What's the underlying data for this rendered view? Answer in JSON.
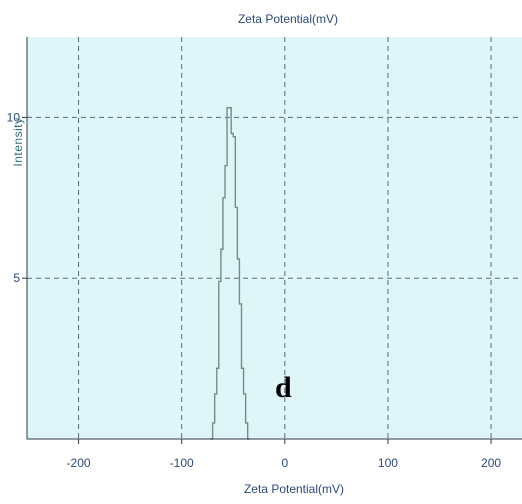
{
  "chart_data": {
    "type": "line",
    "title": "Zeta Potential(mV)",
    "xlabel": "Zeta Potential(mV)",
    "ylabel": "Intensity",
    "xlim": [
      -250,
      230
    ],
    "ylim": [
      0,
      12.5
    ],
    "x_ticks": [
      "-200",
      "-100",
      "0",
      "100",
      "200"
    ],
    "y_ticks": [
      "5",
      "10"
    ],
    "grid": "dashed",
    "annotation": "d",
    "series": [
      {
        "x": [
          -72,
          -70,
          -68,
          -66,
          -64,
          -62,
          -60,
          -58,
          -56,
          -54,
          -52,
          -50,
          -48,
          -46,
          -44,
          -42,
          -40,
          -38,
          -36,
          -34
        ],
        "y": [
          0,
          0.5,
          1.4,
          2.2,
          4.9,
          5.9,
          7.5,
          8.5,
          10.3,
          10.3,
          9.5,
          9.4,
          7.2,
          5.6,
          4.2,
          2.2,
          1.4,
          0.5,
          0,
          0
        ]
      }
    ],
    "colors": {
      "plot_bg": "#dff6f8",
      "line": "#7a8a8c",
      "grid": "#5b6a73",
      "axis": "#2b3a4a"
    }
  }
}
